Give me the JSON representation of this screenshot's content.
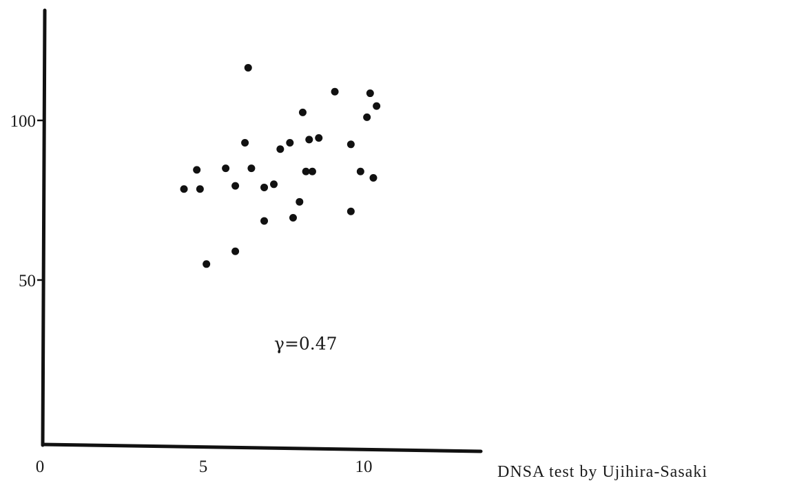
{
  "chart_data": {
    "type": "scatter",
    "title": "",
    "xlabel": "DNSA test by Ujihira-Sasaki",
    "ylabel": "",
    "xlim": [
      0,
      14
    ],
    "ylim": [
      0,
      135
    ],
    "x_ticks": [
      {
        "value": 0,
        "label": "0"
      },
      {
        "value": 5,
        "label": "5"
      },
      {
        "value": 10,
        "label": "10"
      }
    ],
    "y_ticks": [
      {
        "value": 50,
        "label": "50"
      },
      {
        "value": 100,
        "label": "100"
      }
    ],
    "annotation": "γ=0.47",
    "grid": false,
    "series": [
      {
        "color": "#111111",
        "x": [
          4.4,
          4.8,
          4.9,
          5.1,
          5.7,
          6.0,
          6.0,
          6.3,
          6.4,
          6.5,
          6.9,
          6.9,
          7.2,
          7.4,
          7.7,
          7.8,
          8.0,
          8.1,
          8.2,
          8.3,
          8.4,
          8.6,
          9.1,
          9.6,
          9.6,
          9.9,
          10.1,
          10.2,
          10.3,
          10.4
        ],
        "y": [
          78.5,
          84.5,
          78.5,
          55,
          85,
          79.5,
          59,
          93,
          116.5,
          85,
          68.5,
          79,
          80,
          91,
          93,
          69.5,
          74.5,
          102.5,
          84,
          94,
          84,
          94.5,
          109,
          71.5,
          92.5,
          84,
          101,
          108.5,
          82,
          104.5
        ]
      }
    ]
  }
}
